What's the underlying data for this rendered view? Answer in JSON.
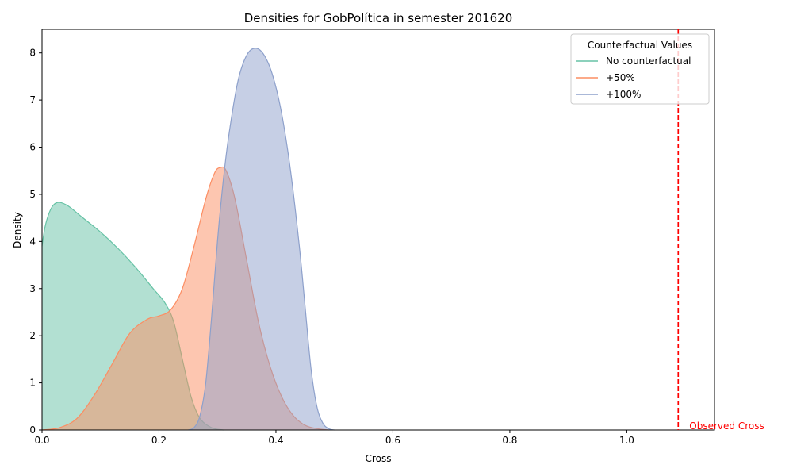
{
  "chart_data": {
    "type": "area",
    "title": "Densities for GobPolítica in semester 201620",
    "xlabel": "Cross",
    "ylabel": "Density",
    "xlim": [
      0.0,
      1.15
    ],
    "ylim": [
      0,
      8.5
    ],
    "x_ticks": [
      0.0,
      0.2,
      0.4,
      0.6,
      0.8,
      1.0
    ],
    "x_tick_labels": [
      "0.0",
      "0.2",
      "0.4",
      "0.6",
      "0.8",
      "1.0"
    ],
    "y_ticks": [
      0,
      1,
      2,
      3,
      4,
      5,
      6,
      7,
      8
    ],
    "y_tick_labels": [
      "0",
      "1",
      "2",
      "3",
      "4",
      "5",
      "6",
      "7",
      "8"
    ],
    "grid": false,
    "legend": {
      "title": "Counterfactual Values",
      "placement": "top-right"
    },
    "series": [
      {
        "name": "No counterfactual",
        "color": "#66c2a5",
        "points": [
          [
            0.0,
            3.9
          ],
          [
            0.005,
            4.3
          ],
          [
            0.012,
            4.6
          ],
          [
            0.02,
            4.78
          ],
          [
            0.03,
            4.83
          ],
          [
            0.045,
            4.75
          ],
          [
            0.07,
            4.5
          ],
          [
            0.1,
            4.2
          ],
          [
            0.13,
            3.85
          ],
          [
            0.16,
            3.45
          ],
          [
            0.19,
            3.0
          ],
          [
            0.21,
            2.7
          ],
          [
            0.225,
            2.3
          ],
          [
            0.24,
            1.5
          ],
          [
            0.255,
            0.7
          ],
          [
            0.27,
            0.25
          ],
          [
            0.29,
            0.05
          ],
          [
            0.31,
            0.0
          ]
        ]
      },
      {
        "name": "+50%",
        "color": "#fc8d62",
        "points": [
          [
            0.0,
            0.0
          ],
          [
            0.03,
            0.05
          ],
          [
            0.06,
            0.25
          ],
          [
            0.09,
            0.75
          ],
          [
            0.12,
            1.4
          ],
          [
            0.15,
            2.05
          ],
          [
            0.18,
            2.35
          ],
          [
            0.2,
            2.42
          ],
          [
            0.22,
            2.55
          ],
          [
            0.24,
            3.0
          ],
          [
            0.26,
            3.9
          ],
          [
            0.28,
            4.9
          ],
          [
            0.295,
            5.45
          ],
          [
            0.305,
            5.57
          ],
          [
            0.315,
            5.5
          ],
          [
            0.33,
            4.9
          ],
          [
            0.35,
            3.6
          ],
          [
            0.37,
            2.3
          ],
          [
            0.39,
            1.35
          ],
          [
            0.41,
            0.7
          ],
          [
            0.43,
            0.3
          ],
          [
            0.45,
            0.1
          ],
          [
            0.47,
            0.03
          ],
          [
            0.49,
            0.0
          ]
        ]
      },
      {
        "name": "+100%",
        "color": "#8da0cb",
        "points": [
          [
            0.25,
            0.0
          ],
          [
            0.26,
            0.05
          ],
          [
            0.27,
            0.3
          ],
          [
            0.28,
            1.0
          ],
          [
            0.29,
            2.4
          ],
          [
            0.3,
            4.0
          ],
          [
            0.31,
            5.3
          ],
          [
            0.32,
            6.3
          ],
          [
            0.335,
            7.4
          ],
          [
            0.35,
            7.95
          ],
          [
            0.365,
            8.1
          ],
          [
            0.38,
            7.95
          ],
          [
            0.395,
            7.5
          ],
          [
            0.41,
            6.7
          ],
          [
            0.425,
            5.5
          ],
          [
            0.44,
            3.9
          ],
          [
            0.45,
            2.6
          ],
          [
            0.46,
            1.3
          ],
          [
            0.47,
            0.5
          ],
          [
            0.48,
            0.15
          ],
          [
            0.49,
            0.03
          ],
          [
            0.5,
            0.0
          ]
        ]
      }
    ],
    "annotations": [
      {
        "type": "vline",
        "x": 1.088,
        "color": "#ff0000",
        "style": "dashed",
        "label": "Observed Cross"
      }
    ]
  }
}
